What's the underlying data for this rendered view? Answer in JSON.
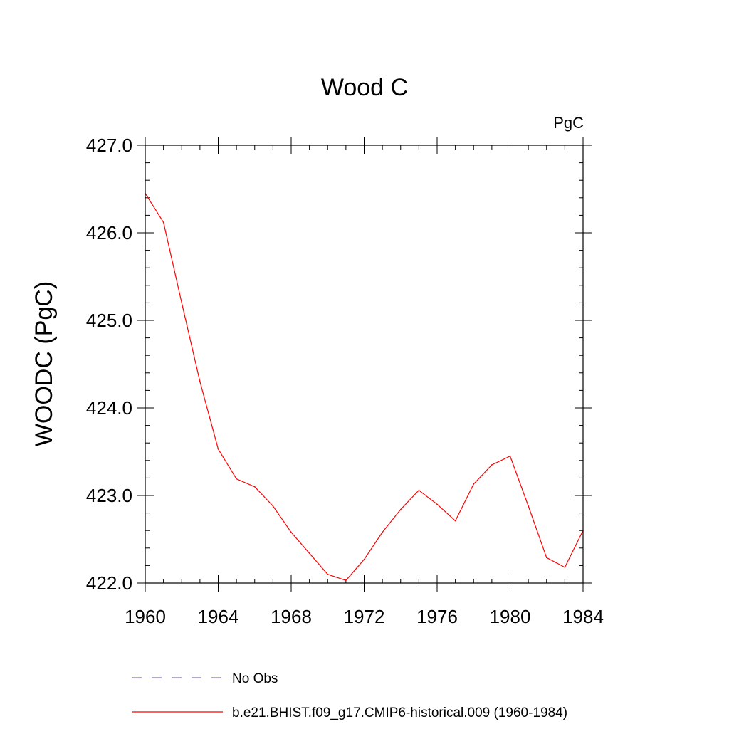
{
  "chart_data": {
    "type": "line",
    "title": "Wood C",
    "units_label": "PgC",
    "ylabel": "WOODC  (PgC)",
    "xlabel": "",
    "xlim": [
      1960,
      1984
    ],
    "ylim": [
      422.0,
      427.0
    ],
    "x_ticks": [
      1960,
      1964,
      1968,
      1972,
      1976,
      1980,
      1984
    ],
    "x_tick_labels": [
      "1960",
      "1964",
      "1968",
      "1972",
      "1976",
      "1980",
      "1984"
    ],
    "y_ticks": [
      422.0,
      423.0,
      424.0,
      425.0,
      426.0,
      427.0
    ],
    "y_tick_labels": [
      "422.0",
      "423.0",
      "424.0",
      "425.0",
      "426.0",
      "427.0"
    ],
    "grid": false,
    "legend_position": "bottom",
    "series": [
      {
        "name": "No Obs",
        "color": "#7b74c9",
        "line_style": "dashed",
        "x": [],
        "values": []
      },
      {
        "name": "b.e21.BHIST.f09_g17.CMIP6-historical.009 (1960-1984)",
        "color": "#ff0000",
        "line_style": "solid",
        "x": [
          1960,
          1961,
          1962,
          1963,
          1964,
          1965,
          1966,
          1967,
          1968,
          1969,
          1970,
          1971,
          1972,
          1973,
          1974,
          1975,
          1976,
          1977,
          1978,
          1979,
          1980,
          1981,
          1982,
          1983,
          1984
        ],
        "values": [
          426.45,
          426.12,
          425.2,
          424.3,
          423.53,
          423.19,
          423.1,
          422.88,
          422.58,
          422.34,
          422.1,
          422.03,
          422.27,
          422.58,
          422.84,
          423.06,
          422.9,
          422.71,
          423.13,
          423.35,
          423.45,
          422.88,
          422.29,
          422.18,
          422.6
        ]
      }
    ]
  }
}
